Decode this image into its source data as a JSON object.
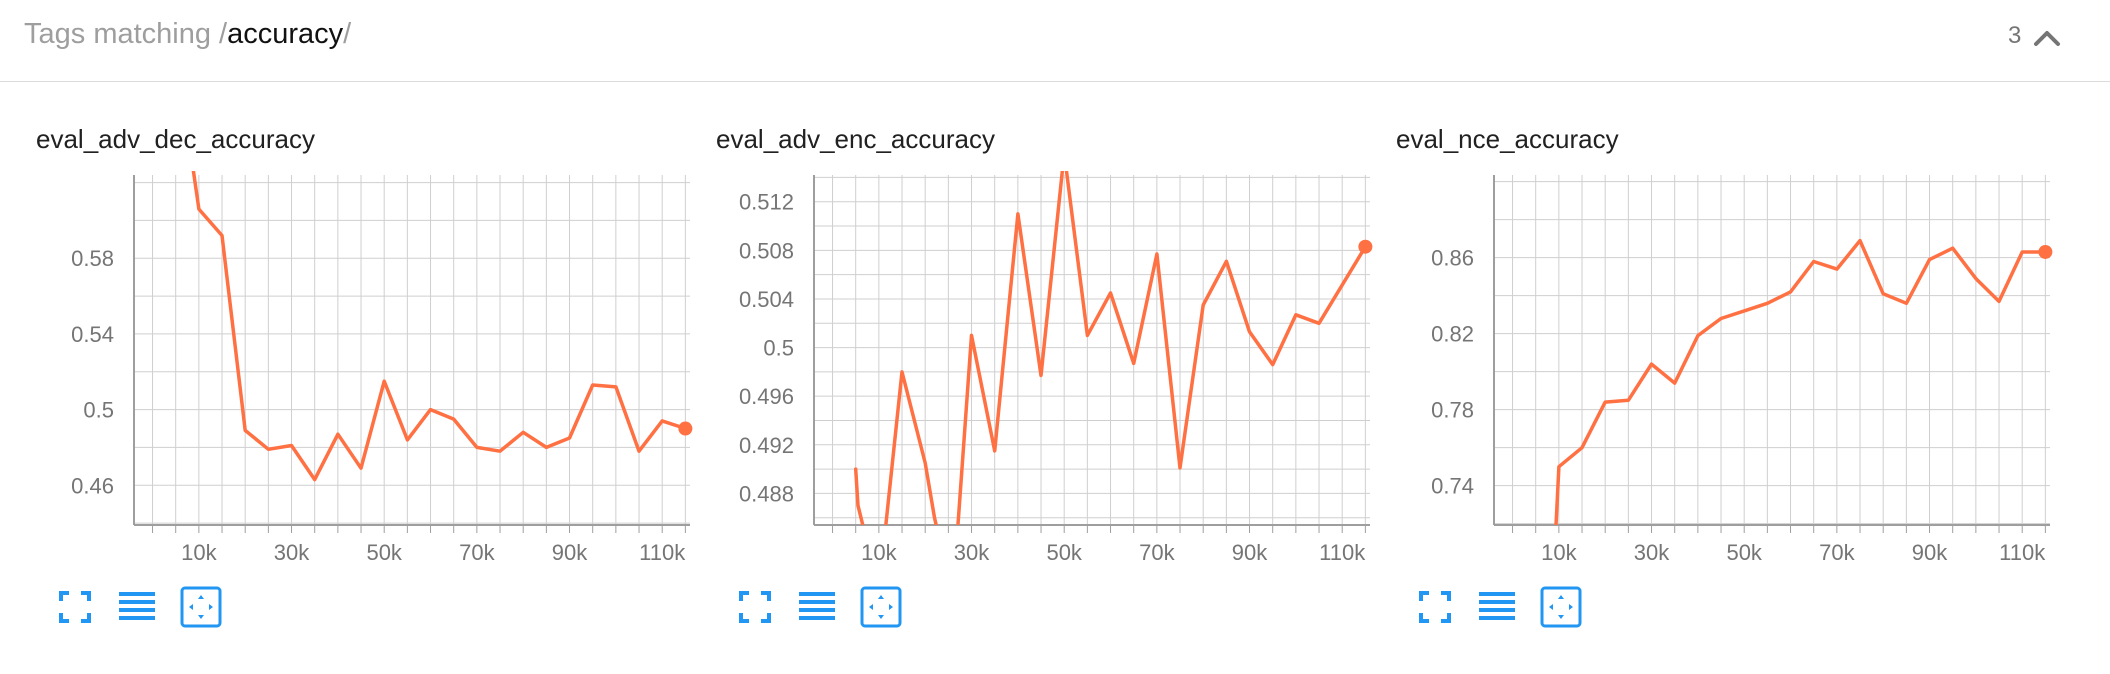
{
  "header": {
    "prefix": "Tags matching /",
    "query": "accuracy",
    "suffix": "/",
    "count": "3",
    "chevron_icon": "chevron-up-icon"
  },
  "colors": {
    "line": "#FF7043",
    "grid": "#cfcfcf",
    "axis": "#9e9e9e",
    "tick_text": "#757575",
    "toolbar": "#2196F3"
  },
  "toolbar_icons": [
    "fullscreen-icon",
    "list-icon",
    "fit-domain-icon"
  ],
  "chart_data": [
    {
      "type": "line",
      "title": "eval_adv_dec_accuracy",
      "xlim": [
        -4000,
        116000
      ],
      "ylim": [
        0.439,
        0.624
      ],
      "x_ticks": [
        "10k",
        "30k",
        "50k",
        "70k",
        "90k",
        "110k"
      ],
      "x_tick_values": [
        10000,
        30000,
        50000,
        70000,
        90000,
        110000
      ],
      "y_ticks": [
        "0.46",
        "0.5",
        "0.54",
        "0.58"
      ],
      "y_tick_values": [
        0.46,
        0.5,
        0.54,
        0.58
      ],
      "series": [
        {
          "x": [
            8000,
            10000,
            15000,
            20000,
            25000,
            30000,
            35000,
            40000,
            45000,
            50000,
            55000,
            60000,
            65000,
            70000,
            75000,
            80000,
            85000,
            90000,
            95000,
            100000,
            105000,
            110000,
            115000
          ],
          "y": [
            0.64,
            0.606,
            0.592,
            0.489,
            0.479,
            0.481,
            0.463,
            0.487,
            0.469,
            0.515,
            0.484,
            0.5,
            0.495,
            0.48,
            0.478,
            0.488,
            0.48,
            0.485,
            0.513,
            0.512,
            0.478,
            0.494,
            0.49
          ]
        }
      ]
    },
    {
      "type": "line",
      "title": "eval_adv_enc_accuracy",
      "xlim": [
        -4000,
        116000
      ],
      "ylim": [
        0.4854,
        0.5142
      ],
      "x_ticks": [
        "10k",
        "30k",
        "50k",
        "70k",
        "90k",
        "110k"
      ],
      "x_tick_values": [
        10000,
        30000,
        50000,
        70000,
        90000,
        110000
      ],
      "y_ticks": [
        "0.488",
        "0.492",
        "0.496",
        "0.5",
        "0.504",
        "0.508",
        "0.512"
      ],
      "y_tick_values": [
        0.488,
        0.492,
        0.496,
        0.5,
        0.504,
        0.508,
        0.512
      ],
      "series": [
        {
          "x": [
            5000,
            5500,
            10000,
            15000,
            20000,
            22000,
            25000,
            27000,
            30000,
            35000,
            40000,
            45000,
            50000,
            55000,
            60000,
            65000,
            70000,
            75000,
            80000,
            85000,
            90000,
            95000,
            100000,
            105000,
            115000
          ],
          "y": [
            0.49,
            0.487,
            0.48,
            0.498,
            0.4905,
            0.486,
            0.481,
            0.485,
            0.501,
            0.4915,
            0.511,
            0.4977,
            0.516,
            0.501,
            0.5045,
            0.4987,
            0.5077,
            0.4901,
            0.5035,
            0.5071,
            0.5013,
            0.4986,
            0.5027,
            0.502,
            0.5083
          ]
        }
      ]
    },
    {
      "type": "line",
      "title": "eval_nce_accuracy",
      "xlim": [
        -4000,
        116000
      ],
      "ylim": [
        0.7193,
        0.9035
      ],
      "x_ticks": [
        "10k",
        "30k",
        "50k",
        "70k",
        "90k",
        "110k"
      ],
      "x_tick_values": [
        10000,
        30000,
        50000,
        70000,
        90000,
        110000
      ],
      "y_ticks": [
        "0.74",
        "0.78",
        "0.82",
        "0.86"
      ],
      "y_tick_values": [
        0.74,
        0.78,
        0.82,
        0.86
      ],
      "series": [
        {
          "x": [
            9000,
            10000,
            15000,
            20000,
            25000,
            30000,
            35000,
            40000,
            45000,
            50000,
            55000,
            60000,
            65000,
            70000,
            75000,
            80000,
            85000,
            90000,
            95000,
            100000,
            105000,
            110000,
            115000
          ],
          "y": [
            0.7,
            0.75,
            0.76,
            0.784,
            0.785,
            0.804,
            0.794,
            0.819,
            0.828,
            0.832,
            0.836,
            0.842,
            0.858,
            0.854,
            0.869,
            0.841,
            0.836,
            0.859,
            0.865,
            0.849,
            0.837,
            0.863,
            0.863
          ]
        }
      ]
    }
  ]
}
